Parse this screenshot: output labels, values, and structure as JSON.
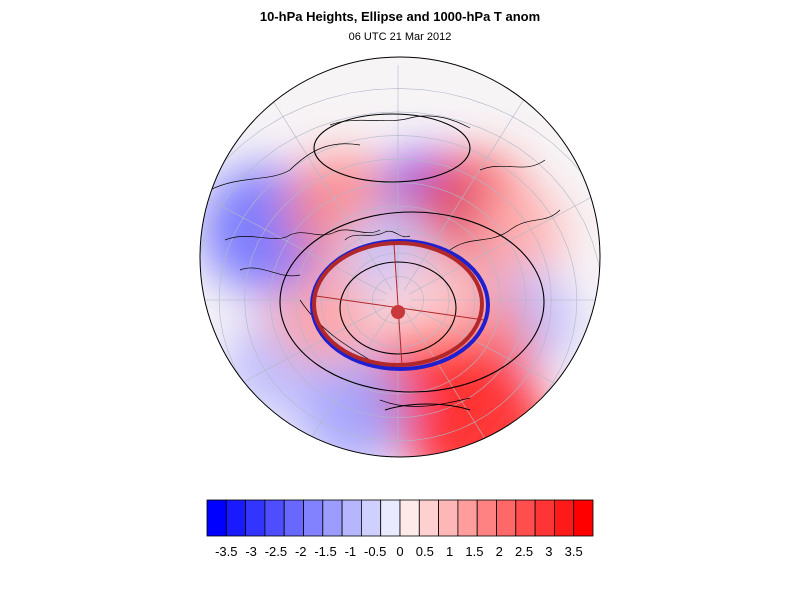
{
  "header": {
    "title": "10-hPa Heights, Ellipse and 1000-hPa T anom",
    "subtitle": "06 UTC 21 Mar 2012"
  },
  "map": {
    "projection": "orthographic-polar",
    "colors": {
      "coast": "#000000",
      "grid": "#b0b8c8",
      "ellipse_outer": "#1f1fd0",
      "ellipse_inner": "#b2282a",
      "center_marker": "#c8383a"
    },
    "anomaly_blobs": [
      {
        "lon": 20,
        "lat": 55,
        "value": -3.0
      },
      {
        "lon": 40,
        "lat": 45,
        "value": 2.6
      },
      {
        "lon": 60,
        "lat": 35,
        "value": 0.8
      },
      {
        "lon": 100,
        "lat": 40,
        "value": -1.2
      },
      {
        "lon": 120,
        "lat": 55,
        "value": 1.8
      },
      {
        "lon": 150,
        "lat": 30,
        "value": 3.5
      },
      {
        "lon": 160,
        "lat": 50,
        "value": 2.8
      },
      {
        "lon": 200,
        "lat": 40,
        "value": -1.6
      },
      {
        "lon": 240,
        "lat": 35,
        "value": -1.0
      },
      {
        "lon": 260,
        "lat": 60,
        "value": 1.4
      },
      {
        "lon": 300,
        "lat": 30,
        "value": -2.4
      },
      {
        "lon": 330,
        "lat": 45,
        "value": 1.6
      },
      {
        "lon": 350,
        "lat": 70,
        "value": -0.8
      },
      {
        "lon": 80,
        "lat": 75,
        "value": 0.6
      }
    ]
  },
  "colorbar": {
    "levels": [
      -3.5,
      -3,
      -2.5,
      -2,
      -1.5,
      -1,
      -0.5,
      0,
      0.5,
      1,
      1.5,
      2,
      2.5,
      3,
      3.5
    ],
    "tick_labels": [
      "-3.5",
      "-3",
      "-2.5",
      "-2",
      "-1.5",
      "-1",
      "-0.5",
      "0",
      "0.5",
      "1",
      "1.5",
      "2",
      "2.5",
      "3",
      "3.5"
    ],
    "colors": [
      "#0000ff",
      "#1a1aff",
      "#3434ff",
      "#4e4eff",
      "#6868ff",
      "#8282ff",
      "#9c9cff",
      "#b6b6ff",
      "#d0d0ff",
      "#eaeaff",
      "#ffeaea",
      "#ffd0d0",
      "#ffb6b6",
      "#ff9c9c",
      "#ff8282",
      "#ff6868",
      "#ff4e4e",
      "#ff3434",
      "#ff1a1a",
      "#ff0000"
    ]
  }
}
